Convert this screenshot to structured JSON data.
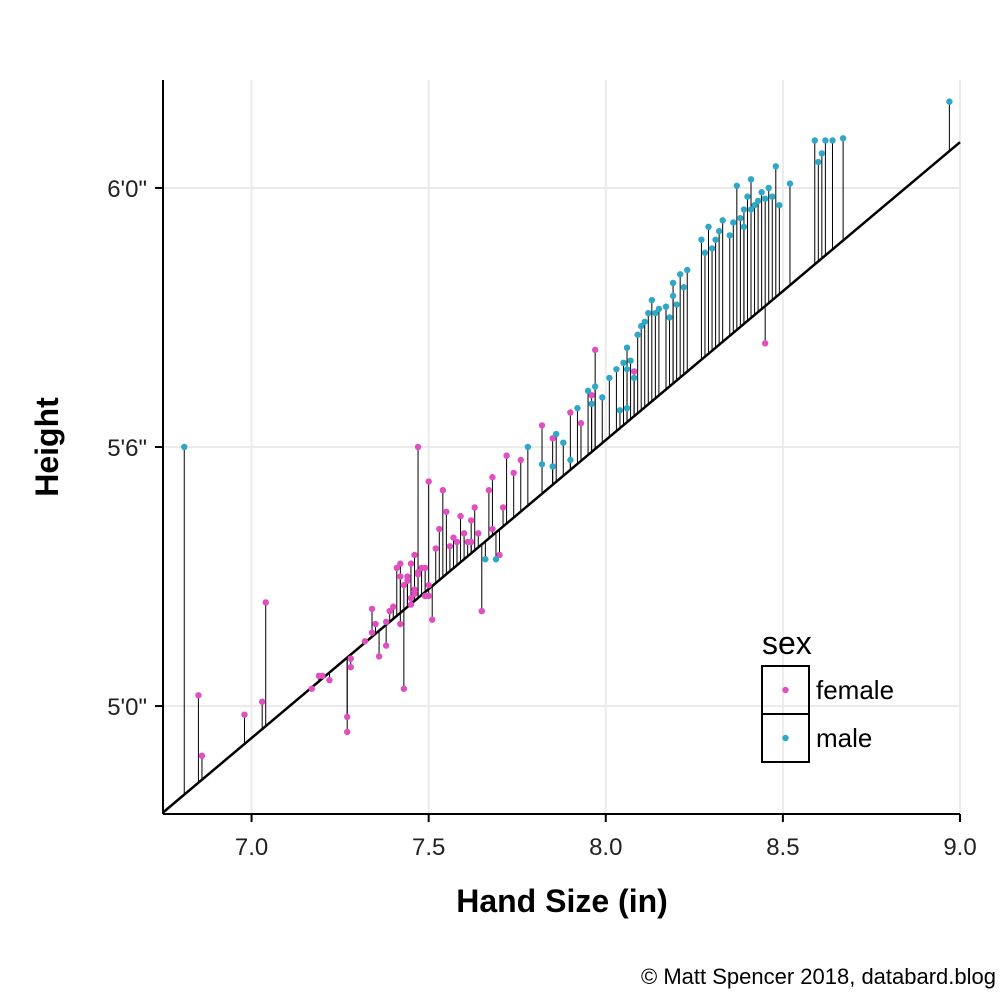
{
  "chart_data": {
    "type": "scatter",
    "xlabel": "Hand Size (in)",
    "ylabel": "Height",
    "xlim": [
      6.75,
      9.0
    ],
    "ylim": [
      57.5,
      74.5
    ],
    "x_ticks": [
      {
        "value": 7.0,
        "label": "7.0"
      },
      {
        "value": 7.5,
        "label": "7.5"
      },
      {
        "value": 8.0,
        "label": "8.0"
      },
      {
        "value": 8.5,
        "label": "8.5"
      },
      {
        "value": 9.0,
        "label": "9.0"
      }
    ],
    "y_ticks": [
      {
        "value": 60,
        "label": "5'0\""
      },
      {
        "value": 66,
        "label": "5'6\""
      },
      {
        "value": 72,
        "label": "6'0\""
      }
    ],
    "grid": true,
    "fit_line": {
      "slope": 6.9,
      "intercept": 10.96
    },
    "legend": {
      "title": "sex",
      "placement": "bottom-right"
    },
    "caption": "© Matt Spencer 2018, databard.blog",
    "series": [
      {
        "name": "female",
        "color": "#e04ec0",
        "points": [
          [
            6.85,
            60.25
          ],
          [
            6.86,
            58.85
          ],
          [
            6.98,
            59.8
          ],
          [
            7.03,
            60.1
          ],
          [
            7.04,
            62.4
          ],
          [
            7.17,
            60.4
          ],
          [
            7.19,
            60.7
          ],
          [
            7.2,
            60.7
          ],
          [
            7.22,
            60.6
          ],
          [
            7.27,
            59.75
          ],
          [
            7.27,
            59.4
          ],
          [
            7.28,
            61.1
          ],
          [
            7.28,
            60.9
          ],
          [
            7.32,
            61.5
          ],
          [
            7.34,
            61.7
          ],
          [
            7.34,
            62.25
          ],
          [
            7.35,
            61.9
          ],
          [
            7.36,
            61.15
          ],
          [
            7.38,
            61.4
          ],
          [
            7.38,
            61.95
          ],
          [
            7.39,
            62.2
          ],
          [
            7.4,
            62.3
          ],
          [
            7.41,
            63.2
          ],
          [
            7.42,
            63.0
          ],
          [
            7.42,
            61.9
          ],
          [
            7.42,
            63.3
          ],
          [
            7.43,
            60.4
          ],
          [
            7.43,
            62.8
          ],
          [
            7.44,
            63.0
          ],
          [
            7.44,
            62.9
          ],
          [
            7.45,
            62.5
          ],
          [
            7.45,
            62.35
          ],
          [
            7.45,
            63.3
          ],
          [
            7.46,
            62.6
          ],
          [
            7.46,
            63.5
          ],
          [
            7.46,
            62.7
          ],
          [
            7.47,
            63.05
          ],
          [
            7.47,
            63.1
          ],
          [
            7.47,
            66.0
          ],
          [
            7.48,
            63.2
          ],
          [
            7.49,
            62.55
          ],
          [
            7.49,
            63.2
          ],
          [
            7.5,
            62.55
          ],
          [
            7.5,
            62.8
          ],
          [
            7.5,
            65.2
          ],
          [
            7.51,
            62.0
          ],
          [
            7.52,
            63.65
          ],
          [
            7.53,
            64.1
          ],
          [
            7.54,
            65.0
          ],
          [
            7.55,
            64.5
          ],
          [
            7.56,
            63.7
          ],
          [
            7.57,
            63.9
          ],
          [
            7.58,
            63.8
          ],
          [
            7.59,
            64.4
          ],
          [
            7.6,
            64.0
          ],
          [
            7.61,
            63.8
          ],
          [
            7.62,
            64.3
          ],
          [
            7.62,
            63.8
          ],
          [
            7.63,
            64.6
          ],
          [
            7.64,
            64.0
          ],
          [
            7.65,
            62.2
          ],
          [
            7.67,
            65.0
          ],
          [
            7.68,
            64.1
          ],
          [
            7.68,
            65.3
          ],
          [
            7.7,
            63.5
          ],
          [
            7.71,
            64.6
          ],
          [
            7.72,
            65.8
          ],
          [
            7.74,
            65.4
          ],
          [
            7.76,
            65.7
          ],
          [
            7.82,
            66.5
          ],
          [
            7.85,
            66.2
          ],
          [
            7.9,
            66.8
          ],
          [
            7.93,
            66.55
          ],
          [
            7.96,
            67.2
          ],
          [
            7.97,
            68.25
          ],
          [
            8.08,
            67.75
          ],
          [
            8.45,
            68.4
          ]
        ]
      },
      {
        "name": "male",
        "color": "#2ea8c6",
        "points": [
          [
            6.81,
            66.0
          ],
          [
            7.66,
            63.4
          ],
          [
            7.69,
            63.4
          ],
          [
            7.78,
            66.0
          ],
          [
            7.82,
            65.6
          ],
          [
            7.85,
            65.55
          ],
          [
            7.86,
            66.3
          ],
          [
            7.88,
            66.1
          ],
          [
            7.9,
            65.7
          ],
          [
            7.92,
            66.9
          ],
          [
            7.95,
            67.3
          ],
          [
            7.96,
            67.0
          ],
          [
            7.97,
            67.4
          ],
          [
            7.99,
            67.15
          ],
          [
            8.01,
            67.6
          ],
          [
            8.03,
            67.8
          ],
          [
            8.04,
            66.85
          ],
          [
            8.05,
            67.95
          ],
          [
            8.06,
            66.9
          ],
          [
            8.06,
            68.3
          ],
          [
            8.06,
            67.8
          ],
          [
            8.07,
            68.0
          ],
          [
            8.08,
            67.6
          ],
          [
            8.09,
            68.6
          ],
          [
            8.1,
            68.8
          ],
          [
            8.11,
            68.9
          ],
          [
            8.12,
            69.1
          ],
          [
            8.13,
            69.4
          ],
          [
            8.14,
            69.1
          ],
          [
            8.15,
            69.2
          ],
          [
            8.17,
            69.25
          ],
          [
            8.18,
            69.0
          ],
          [
            8.19,
            69.8
          ],
          [
            8.19,
            69.5
          ],
          [
            8.2,
            69.3
          ],
          [
            8.21,
            70.0
          ],
          [
            8.22,
            69.7
          ],
          [
            8.23,
            70.1
          ],
          [
            8.27,
            70.8
          ],
          [
            8.28,
            70.5
          ],
          [
            8.29,
            71.1
          ],
          [
            8.3,
            70.6
          ],
          [
            8.31,
            70.8
          ],
          [
            8.32,
            71.0
          ],
          [
            8.33,
            71.25
          ],
          [
            8.35,
            70.9
          ],
          [
            8.36,
            71.2
          ],
          [
            8.37,
            72.05
          ],
          [
            8.38,
            71.3
          ],
          [
            8.39,
            71.1
          ],
          [
            8.39,
            71.5
          ],
          [
            8.4,
            71.8
          ],
          [
            8.41,
            72.2
          ],
          [
            8.41,
            71.5
          ],
          [
            8.42,
            71.6
          ],
          [
            8.43,
            71.7
          ],
          [
            8.44,
            71.9
          ],
          [
            8.45,
            71.75
          ],
          [
            8.46,
            72.0
          ],
          [
            8.47,
            71.8
          ],
          [
            8.48,
            72.5
          ],
          [
            8.49,
            71.6
          ],
          [
            8.52,
            72.1
          ],
          [
            8.59,
            73.1
          ],
          [
            8.6,
            72.6
          ],
          [
            8.61,
            72.8
          ],
          [
            8.62,
            73.1
          ],
          [
            8.64,
            73.1
          ],
          [
            8.67,
            73.15
          ],
          [
            8.97,
            74.0
          ]
        ]
      }
    ]
  }
}
